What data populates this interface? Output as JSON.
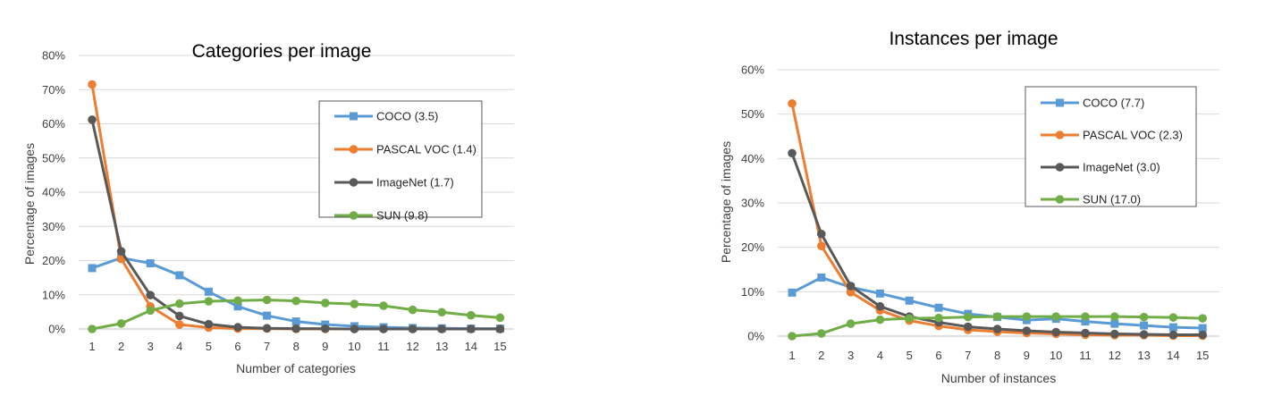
{
  "chart_data": [
    {
      "type": "line",
      "title": "Categories per image",
      "xlabel": "Number of categories",
      "ylabel": "Percentage of images",
      "x": [
        1,
        2,
        3,
        4,
        5,
        6,
        7,
        8,
        9,
        10,
        11,
        12,
        13,
        14,
        15
      ],
      "ylim": [
        0,
        80
      ],
      "yticks": [
        0,
        10,
        20,
        30,
        40,
        50,
        60,
        70,
        80
      ],
      "ytick_labels": [
        "0%",
        "10%",
        "20%",
        "30%",
        "40%",
        "50%",
        "60%",
        "70%",
        "80%"
      ],
      "legend_position": "top-right",
      "series": [
        {
          "name": "COCO (3.5)",
          "color": "#5b9bd5",
          "marker": "square",
          "values": [
            17.8,
            20.8,
            19.2,
            15.7,
            10.9,
            6.6,
            3.9,
            2.2,
            1.3,
            0.8,
            0.5,
            0.3,
            0.2,
            0.1,
            0.1
          ]
        },
        {
          "name": "PASCAL VOC (1.4)",
          "color": "#ed7d31",
          "marker": "circle",
          "values": [
            71.5,
            20.5,
            6.6,
            1.3,
            0.4,
            0.1,
            0.1,
            0,
            0,
            0,
            0,
            0,
            0,
            0,
            0
          ]
        },
        {
          "name": "ImageNet (1.7)",
          "color": "#595959",
          "marker": "circle",
          "values": [
            61.2,
            22.7,
            9.9,
            3.8,
            1.4,
            0.5,
            0.2,
            0.1,
            0.1,
            0,
            0,
            0,
            0,
            0,
            0
          ]
        },
        {
          "name": "SUN (9.8)",
          "color": "#70ad47",
          "marker": "circle",
          "values": [
            0,
            1.6,
            5.4,
            7.4,
            8.1,
            8.3,
            8.5,
            8.2,
            7.6,
            7.3,
            6.8,
            5.6,
            4.9,
            4.0,
            3.3
          ]
        }
      ]
    },
    {
      "type": "line",
      "title": "Instances per image",
      "xlabel": "Number of instances",
      "ylabel": "Percentage of images",
      "x": [
        1,
        2,
        3,
        4,
        5,
        6,
        7,
        8,
        9,
        10,
        11,
        12,
        13,
        14,
        15
      ],
      "ylim": [
        0,
        60
      ],
      "yticks": [
        0,
        10,
        20,
        30,
        40,
        50,
        60
      ],
      "ytick_labels": [
        "0%",
        "10%",
        "20%",
        "30%",
        "40%",
        "50%",
        "60%"
      ],
      "legend_position": "top-right",
      "series": [
        {
          "name": "COCO (7.7)",
          "color": "#5b9bd5",
          "marker": "square",
          "values": [
            9.8,
            13.2,
            11.0,
            9.6,
            8.0,
            6.4,
            5.0,
            4.3,
            3.6,
            3.9,
            3.3,
            2.8,
            2.4,
            2.0,
            1.8
          ]
        },
        {
          "name": "PASCAL VOC (2.3)",
          "color": "#ed7d31",
          "marker": "circle",
          "values": [
            52.4,
            20.3,
            9.9,
            5.8,
            3.5,
            2.3,
            1.4,
            1.0,
            0.7,
            0.5,
            0.3,
            0.2,
            0.2,
            0.1,
            0.1
          ]
        },
        {
          "name": "ImageNet (3.0)",
          "color": "#595959",
          "marker": "circle",
          "values": [
            41.2,
            23.0,
            11.3,
            6.7,
            4.4,
            3.1,
            2.1,
            1.6,
            1.2,
            0.9,
            0.7,
            0.5,
            0.4,
            0.3,
            0.3
          ]
        },
        {
          "name": "SUN (17.0)",
          "color": "#70ad47",
          "marker": "circle",
          "values": [
            0,
            0.6,
            2.8,
            3.7,
            4.0,
            4.1,
            4.3,
            4.4,
            4.4,
            4.4,
            4.4,
            4.4,
            4.3,
            4.2,
            4.0
          ]
        }
      ]
    }
  ]
}
